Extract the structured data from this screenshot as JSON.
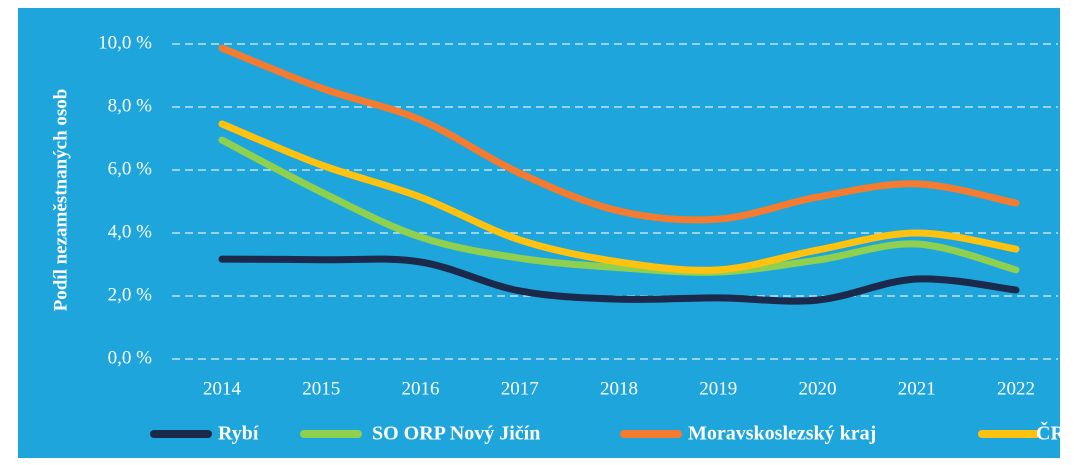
{
  "chart_data": {
    "type": "line",
    "y_label": "Podíl nezaměstnaných osob",
    "categories": [
      "2014",
      "2015",
      "2016",
      "2017",
      "2018",
      "2019",
      "2020",
      "2021",
      "2022"
    ],
    "series": [
      {
        "name": "Rybí",
        "color": "#1b2a4a",
        "values": [
          3.17,
          3.15,
          3.08,
          2.16,
          1.9,
          1.94,
          1.87,
          2.54,
          2.19
        ]
      },
      {
        "name": "SO ORP Nový Jičín",
        "color": "#8fd14f",
        "values": [
          6.95,
          5.3,
          3.87,
          3.2,
          2.9,
          2.76,
          3.14,
          3.65,
          2.83
        ]
      },
      {
        "name": "Moravskoslezský kraj",
        "color": "#f47b30",
        "values": [
          9.87,
          8.6,
          7.59,
          5.9,
          4.7,
          4.44,
          5.14,
          5.56,
          4.95
        ]
      },
      {
        "name": "ČR",
        "color": "#ffc20e",
        "values": [
          7.46,
          6.16,
          5.14,
          3.78,
          3.08,
          2.83,
          3.46,
          4.0,
          3.49
        ]
      }
    ],
    "ylim": [
      0,
      10
    ],
    "yticks": [
      {
        "value": 0,
        "label": "0,0 %"
      },
      {
        "value": 2,
        "label": "2,0 %"
      },
      {
        "value": 4,
        "label": "4,0 %"
      },
      {
        "value": 6,
        "label": "6,0 %"
      },
      {
        "value": 8,
        "label": "8,0 %"
      },
      {
        "value": 10,
        "label": "10,0 %"
      }
    ],
    "grid": true,
    "legend": "bottom"
  }
}
